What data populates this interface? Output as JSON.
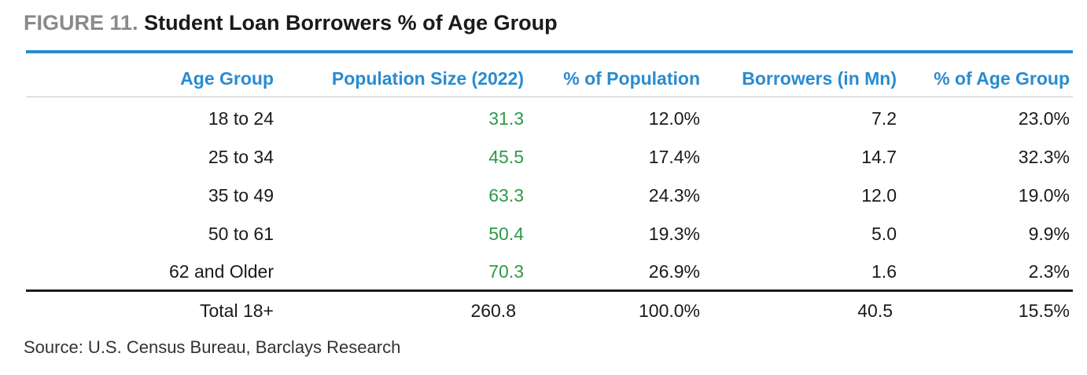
{
  "figure": {
    "number": "FIGURE 11.",
    "title": "Student Loan Borrowers % of Age Group",
    "source": "Source: U.S. Census Bureau, Barclays Research"
  },
  "colors": {
    "accent": "#2a8bd0",
    "highlight_green": "#2e9a48",
    "text": "#1a1a1a"
  },
  "chart_data": {
    "type": "table",
    "title": "Student Loan Borrowers % of Age Group",
    "columns": [
      "Age Group",
      "Population Size (2022)",
      "% of Population",
      "Borrowers (in Mn)",
      "% of Age Group"
    ],
    "rows": [
      [
        "18 to 24",
        "31.3",
        "12.0%",
        "7.2",
        "23.0%"
      ],
      [
        "25 to 34",
        "45.5",
        "17.4%",
        "14.7",
        "32.3%"
      ],
      [
        "35 to 49",
        "63.3",
        "24.3%",
        "12.0",
        "19.0%"
      ],
      [
        "50 to 61",
        "50.4",
        "19.3%",
        "5.0",
        "9.9%"
      ],
      [
        "62 and Older",
        "70.3",
        "26.9%",
        "1.6",
        "2.3%"
      ]
    ],
    "total": [
      "Total 18+",
      "260.8",
      "100.0%",
      "40.5",
      "15.5%"
    ]
  }
}
